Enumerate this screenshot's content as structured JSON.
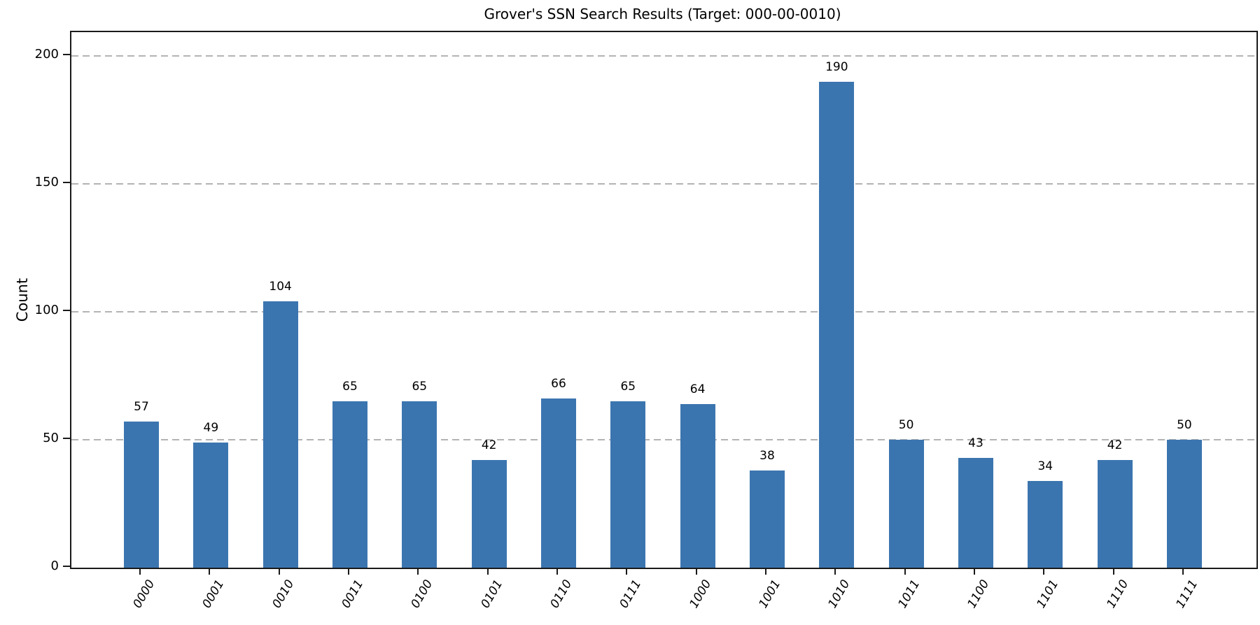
{
  "chart_data": {
    "type": "bar",
    "title": "Grover's SSN Search Results (Target: 000-00-0010)",
    "xlabel": "",
    "ylabel": "Count",
    "categories": [
      "0000",
      "0001",
      "0010",
      "0011",
      "0100",
      "0101",
      "0110",
      "0111",
      "1000",
      "1001",
      "1010",
      "1011",
      "1100",
      "1101",
      "1110",
      "1111"
    ],
    "values": [
      57,
      49,
      104,
      65,
      65,
      42,
      66,
      65,
      64,
      38,
      190,
      50,
      43,
      34,
      42,
      50
    ],
    "target_state": "1010",
    "yticks": [
      0,
      50,
      100,
      150,
      200
    ],
    "ylim": [
      0,
      209
    ],
    "grid": "horizontal-dashed",
    "legend": "none",
    "bar_color": "#3b75af",
    "grid_color": "#b3b3b3"
  }
}
